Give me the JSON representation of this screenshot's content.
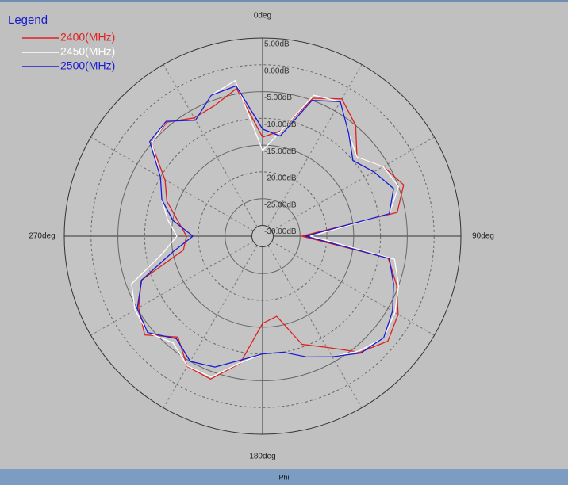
{
  "chart_data": {
    "type": "polar",
    "legend_title": "Legend",
    "legend": "upper left",
    "bottom_label": "Phi",
    "theta": [
      0,
      10,
      20,
      30,
      40,
      50,
      60,
      70,
      80,
      90,
      100,
      110,
      120,
      130,
      140,
      150,
      160,
      170,
      180,
      190,
      200,
      210,
      220,
      230,
      240,
      250,
      260,
      270,
      280,
      290,
      300,
      310,
      320,
      330,
      340,
      350
    ],
    "series": [
      {
        "name": "2400(MHz)",
        "color": "#e02020",
        "values": [
          -13.5,
          -12,
          -4.6,
          -2.4,
          -5,
          -9,
          -6,
          -4,
          -6.5,
          -24.7,
          -8.2,
          -5.4,
          -2.8,
          -1.5,
          -3.7,
          -8,
          -10.5,
          -16.8,
          -15.7,
          -7.9,
          -3.6,
          -3.9,
          -7.4,
          -3.3,
          -5.3,
          -7.9,
          -17,
          -17.8,
          -16,
          -13,
          -11,
          -4.9,
          -4.2,
          -6.5,
          -6,
          -4
        ]
      },
      {
        "name": "2450(MHz)",
        "color": "#ffffff",
        "values": [
          -16,
          -12,
          -4,
          -3,
          -7,
          -9,
          -6,
          -5,
          -8,
          -23,
          -7,
          -5,
          -3.5,
          -2.5,
          -4,
          -6,
          -8,
          -10,
          -10,
          -8,
          -4,
          -4,
          -6,
          -4,
          -4.5,
          -6,
          -13,
          -16,
          -14,
          -12,
          -10,
          -5,
          -4,
          -7,
          -4,
          -2.5
        ]
      },
      {
        "name": "2500(MHz)",
        "color": "#1a1ad0",
        "values": [
          -12,
          -13,
          -5,
          -3,
          -7,
          -10,
          -8,
          -6,
          -8,
          -24,
          -8,
          -6,
          -4,
          -2.5,
          -3.5,
          -6,
          -8,
          -10,
          -10,
          -8.5,
          -6,
          -5,
          -7,
          -4,
          -5,
          -8,
          -15,
          -19,
          -15,
          -12,
          -10,
          -4.5,
          -4,
          -7,
          -4,
          -3.5
        ]
      }
    ],
    "rlim": [
      -32,
      5
    ],
    "rticks": [
      {
        "value": -30,
        "label": "-30.00dB"
      },
      {
        "value": -25,
        "label": "-25.00dB"
      },
      {
        "value": -20,
        "label": "-20.00dB"
      },
      {
        "value": -15,
        "label": "-15.00dB"
      },
      {
        "value": -10,
        "label": "-10.00dB"
      },
      {
        "value": -5,
        "label": "-5.00dB"
      },
      {
        "value": 0,
        "label": "0.00dB"
      },
      {
        "value": 5,
        "label": "5.00dB"
      }
    ],
    "thetaticks": [
      {
        "value": 0,
        "label": "0deg"
      },
      {
        "value": 90,
        "label": "90deg"
      },
      {
        "value": 180,
        "label": "180deg"
      },
      {
        "value": 270,
        "label": "270deg"
      }
    ],
    "theta_grid": [
      0,
      30,
      60,
      90,
      120,
      150,
      180,
      210,
      240,
      270,
      300,
      330
    ]
  }
}
